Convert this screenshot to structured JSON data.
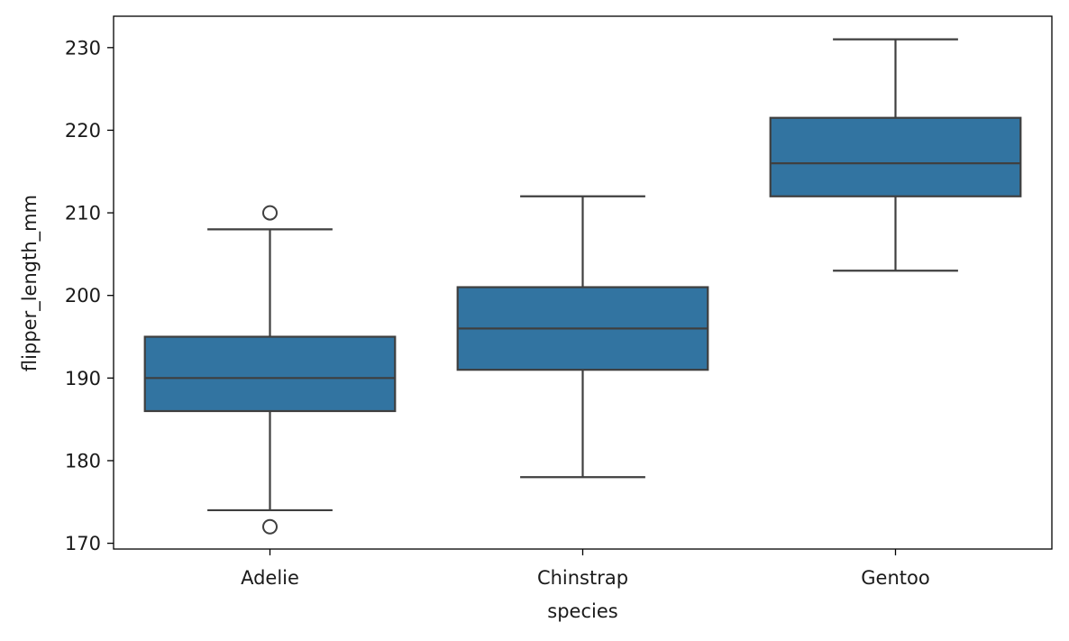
{
  "chart_data": {
    "type": "box",
    "title": "",
    "xlabel": "species",
    "ylabel": "flipper_length_mm",
    "ylim": [
      169.3,
      233.8
    ],
    "yticks": [
      170,
      180,
      190,
      200,
      210,
      220,
      230
    ],
    "grid": false,
    "legend": null,
    "colors": {
      "box_fill": "#3274a1",
      "line": "#3f3f3f",
      "axis": "#000000"
    },
    "categories": [
      "Adelie",
      "Chinstrap",
      "Gentoo"
    ],
    "boxes": [
      {
        "category": "Adelie",
        "whisker_low": 174,
        "q1": 186,
        "median": 190,
        "q3": 195,
        "whisker_high": 208,
        "outliers": [
          172,
          210
        ]
      },
      {
        "category": "Chinstrap",
        "whisker_low": 178,
        "q1": 191,
        "median": 196,
        "q3": 201,
        "whisker_high": 212,
        "outliers": []
      },
      {
        "category": "Gentoo",
        "whisker_low": 203,
        "q1": 212,
        "median": 216,
        "q3": 221.5,
        "whisker_high": 231,
        "outliers": []
      }
    ]
  }
}
